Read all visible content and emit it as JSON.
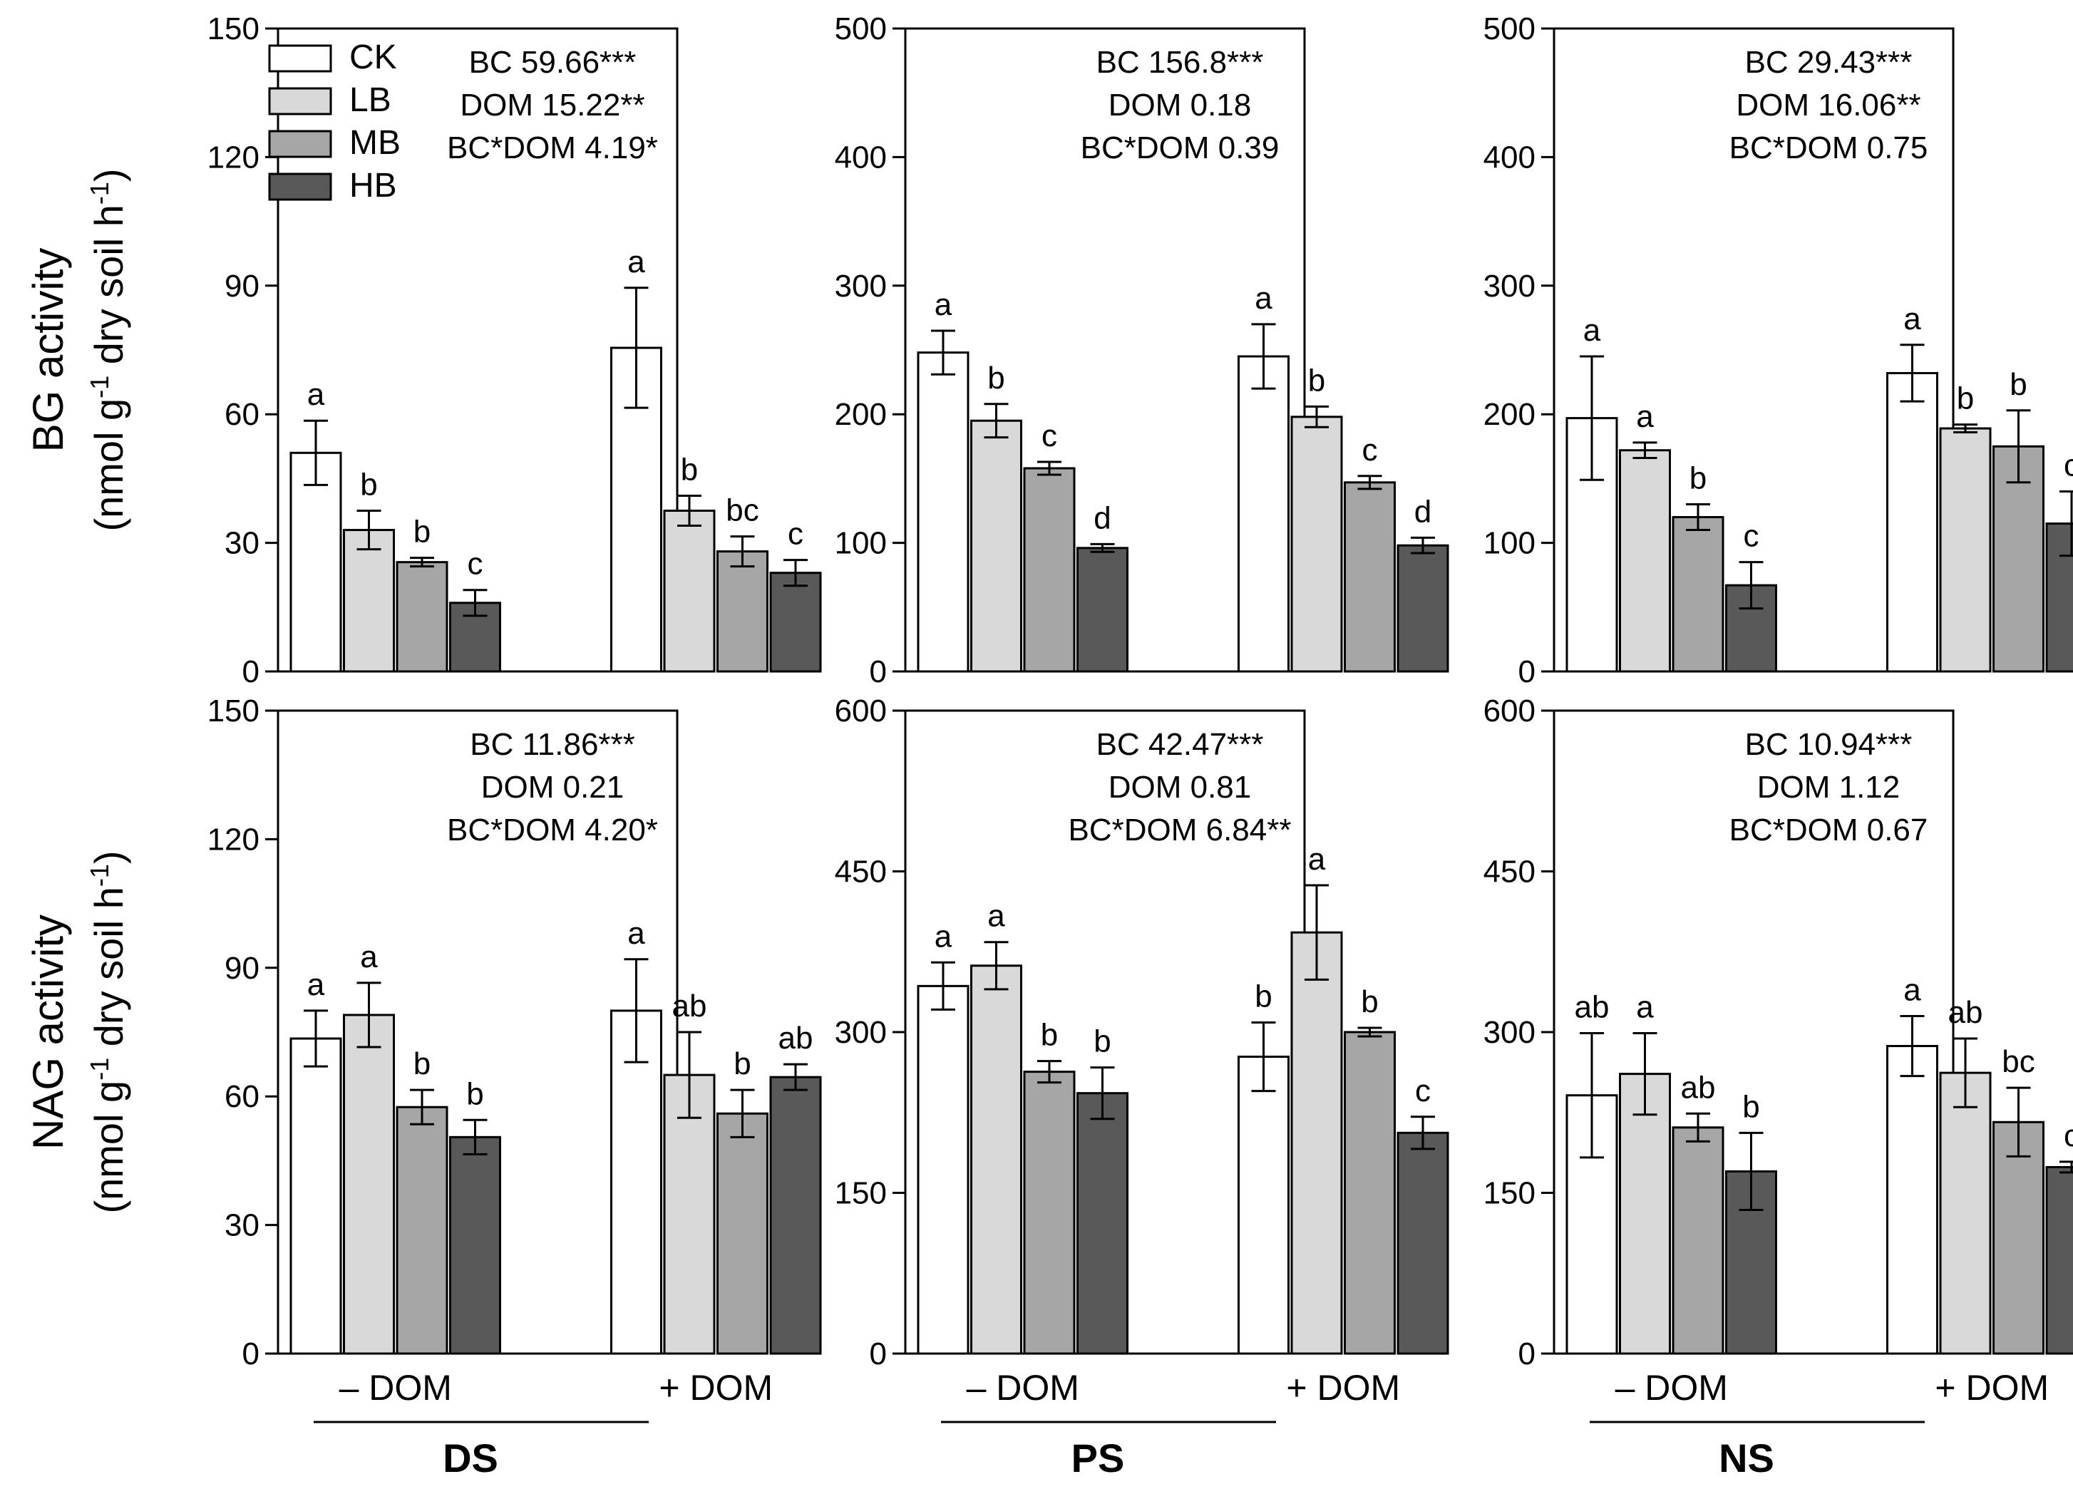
{
  "figure": {
    "row_ylabels": [
      {
        "line1": "BG activity",
        "line2": "(nmol g",
        "line2b": "dry soil h",
        "sup": "-1"
      },
      {
        "line1": "NAG activity",
        "line2": "(nmol g",
        "line2b": "dry soil h",
        "sup": "-1"
      }
    ],
    "group_labels": [
      "– DOM",
      "+ DOM"
    ],
    "legend": [
      {
        "name": "CK",
        "color": "#ffffff"
      },
      {
        "name": "LB",
        "color": "#d9d9d9"
      },
      {
        "name": "MB",
        "color": "#a6a6a6"
      },
      {
        "name": "HB",
        "color": "#595959"
      }
    ],
    "soil_labels": [
      "DS",
      "PS",
      "NS"
    ]
  },
  "chart_data": [
    {
      "type": "bar",
      "row": 0,
      "col": 0,
      "categories": [
        "– DOM",
        "+ DOM"
      ],
      "ylim": [
        0,
        150
      ],
      "yticks": [
        0,
        30,
        60,
        90,
        120,
        150
      ],
      "stats": [
        "BC 59.66***",
        "DOM 15.22**",
        "BC*DOM 4.19*"
      ],
      "series": [
        {
          "name": "CK",
          "values": [
            51,
            75.5
          ],
          "errors": [
            7.5,
            14
          ],
          "letters": [
            "a",
            "a"
          ]
        },
        {
          "name": "LB",
          "values": [
            33,
            37.5
          ],
          "errors": [
            4.5,
            3.5
          ],
          "letters": [
            "b",
            "b"
          ]
        },
        {
          "name": "MB",
          "values": [
            25.5,
            28
          ],
          "errors": [
            1,
            3.5
          ],
          "letters": [
            "b",
            "bc"
          ]
        },
        {
          "name": "HB",
          "values": [
            16,
            23
          ],
          "errors": [
            3,
            3
          ],
          "letters": [
            "c",
            "c"
          ]
        }
      ]
    },
    {
      "type": "bar",
      "row": 0,
      "col": 1,
      "categories": [
        "– DOM",
        "+ DOM"
      ],
      "ylim": [
        0,
        500
      ],
      "yticks": [
        0,
        100,
        200,
        300,
        400,
        500
      ],
      "stats": [
        "BC 156.8***",
        "DOM 0.18",
        "BC*DOM 0.39"
      ],
      "series": [
        {
          "name": "CK",
          "values": [
            248,
            245
          ],
          "errors": [
            17,
            25
          ],
          "letters": [
            "a",
            "a"
          ]
        },
        {
          "name": "LB",
          "values": [
            195,
            198
          ],
          "errors": [
            13,
            8
          ],
          "letters": [
            "b",
            "b"
          ]
        },
        {
          "name": "MB",
          "values": [
            158,
            147
          ],
          "errors": [
            5,
            5
          ],
          "letters": [
            "c",
            "c"
          ]
        },
        {
          "name": "HB",
          "values": [
            96,
            98
          ],
          "errors": [
            3,
            6
          ],
          "letters": [
            "d",
            "d"
          ]
        }
      ]
    },
    {
      "type": "bar",
      "row": 0,
      "col": 2,
      "categories": [
        "– DOM",
        "+ DOM"
      ],
      "ylim": [
        0,
        500
      ],
      "yticks": [
        0,
        100,
        200,
        300,
        400,
        500
      ],
      "stats": [
        "BC 29.43***",
        "DOM 16.06**",
        "BC*DOM 0.75"
      ],
      "series": [
        {
          "name": "CK",
          "values": [
            197,
            232
          ],
          "errors": [
            48,
            22
          ],
          "letters": [
            "a",
            "a"
          ]
        },
        {
          "name": "LB",
          "values": [
            172,
            189
          ],
          "errors": [
            6,
            3
          ],
          "letters": [
            "a",
            "b"
          ]
        },
        {
          "name": "MB",
          "values": [
            120,
            175
          ],
          "errors": [
            10,
            28
          ],
          "letters": [
            "b",
            "b"
          ]
        },
        {
          "name": "HB",
          "values": [
            67,
            115
          ],
          "errors": [
            18,
            25
          ],
          "letters": [
            "c",
            "c"
          ]
        }
      ]
    },
    {
      "type": "bar",
      "row": 1,
      "col": 0,
      "categories": [
        "– DOM",
        "+ DOM"
      ],
      "ylim": [
        0,
        150
      ],
      "yticks": [
        0,
        30,
        60,
        90,
        120,
        150
      ],
      "stats": [
        "BC 11.86***",
        "DOM 0.21",
        "BC*DOM 4.20*"
      ],
      "series": [
        {
          "name": "CK",
          "values": [
            73.5,
            80
          ],
          "errors": [
            6.5,
            12
          ],
          "letters": [
            "a",
            "a"
          ]
        },
        {
          "name": "LB",
          "values": [
            79,
            65
          ],
          "errors": [
            7.5,
            10
          ],
          "letters": [
            "a",
            "ab"
          ]
        },
        {
          "name": "MB",
          "values": [
            57.5,
            56
          ],
          "errors": [
            4,
            5.5
          ],
          "letters": [
            "b",
            "b"
          ]
        },
        {
          "name": "HB",
          "values": [
            50.5,
            64.5
          ],
          "errors": [
            4,
            3
          ],
          "letters": [
            "b",
            "ab"
          ]
        }
      ]
    },
    {
      "type": "bar",
      "row": 1,
      "col": 1,
      "categories": [
        "– DOM",
        "+ DOM"
      ],
      "ylim": [
        0,
        600
      ],
      "yticks": [
        0,
        150,
        300,
        450,
        600
      ],
      "stats": [
        "BC 42.47***",
        "DOM 0.81",
        "BC*DOM 6.84**"
      ],
      "series": [
        {
          "name": "CK",
          "values": [
            343,
            277
          ],
          "errors": [
            22,
            32
          ],
          "letters": [
            "a",
            "b"
          ]
        },
        {
          "name": "LB",
          "values": [
            362,
            393
          ],
          "errors": [
            22,
            44
          ],
          "letters": [
            "a",
            "a"
          ]
        },
        {
          "name": "MB",
          "values": [
            263,
            300
          ],
          "errors": [
            10,
            4
          ],
          "letters": [
            "b",
            "b"
          ]
        },
        {
          "name": "HB",
          "values": [
            243,
            206
          ],
          "errors": [
            24,
            15
          ],
          "letters": [
            "b",
            "c"
          ]
        }
      ]
    },
    {
      "type": "bar",
      "row": 1,
      "col": 2,
      "categories": [
        "– DOM",
        "+ DOM"
      ],
      "ylim": [
        0,
        600
      ],
      "yticks": [
        0,
        150,
        300,
        450,
        600
      ],
      "stats": [
        "BC 10.94***",
        "DOM 1.12",
        "BC*DOM 0.67"
      ],
      "series": [
        {
          "name": "CK",
          "values": [
            241,
            287
          ],
          "errors": [
            58,
            28
          ],
          "letters": [
            "ab",
            "a"
          ]
        },
        {
          "name": "LB",
          "values": [
            261,
            262
          ],
          "errors": [
            38,
            32
          ],
          "letters": [
            "a",
            "ab"
          ]
        },
        {
          "name": "MB",
          "values": [
            211,
            216
          ],
          "errors": [
            13,
            32
          ],
          "letters": [
            "ab",
            "bc"
          ]
        },
        {
          "name": "HB",
          "values": [
            170,
            174
          ],
          "errors": [
            36,
            5
          ],
          "letters": [
            "b",
            "c"
          ]
        }
      ]
    }
  ]
}
